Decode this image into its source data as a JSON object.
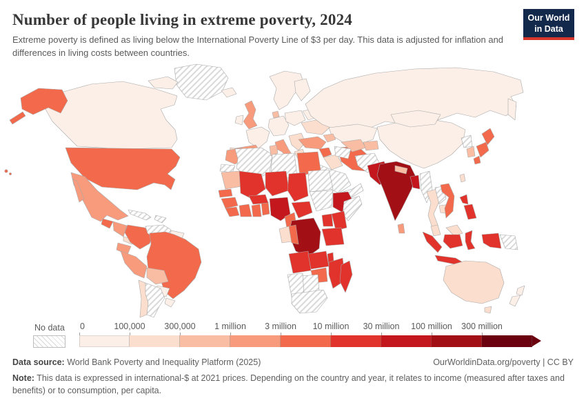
{
  "header": {
    "title": "Number of people living in extreme poverty, 2024",
    "subtitle": "Extreme poverty is defined as living below the International Poverty Line of $3 per day. This data is adjusted for inflation and differences in living costs between countries.",
    "logo": {
      "line1": "Our World",
      "line2": "in Data"
    }
  },
  "legend": {
    "no_data_label": "No data",
    "buckets": [
      {
        "label": "0",
        "color": "#fcefe7"
      },
      {
        "label": "100,000",
        "color": "#fbdecd"
      },
      {
        "label": "300,000",
        "color": "#f9bda3"
      },
      {
        "label": "1 million",
        "color": "#f89b7c"
      },
      {
        "label": "3 million",
        "color": "#f26a4b"
      },
      {
        "label": "10 million",
        "color": "#e1332b"
      },
      {
        "label": "30 million",
        "color": "#c3161d"
      },
      {
        "label": "100 million",
        "color": "#a21016"
      },
      {
        "label": "300 million",
        "color": "#6b000e"
      }
    ]
  },
  "chart_data": {
    "type": "choropleth",
    "title": "Number of people living in extreme poverty, 2024",
    "unit": "people",
    "bins": [
      "0-100,000",
      "100,000-300,000",
      "300,000-1 million",
      "1-3 million",
      "3-10 million",
      "10-30 million",
      "30-100 million",
      "100-300 million",
      "300 million+"
    ],
    "no_data_style": "diagonal-hatch",
    "regions": {
      "greenland": "nd",
      "canada": 1,
      "canada-islands": 1,
      "alaska": 5,
      "aleutians": 5,
      "usa": 5,
      "hawaii": 5,
      "mexico": 4,
      "guatemala": 5,
      "honduras-nicaragua": 4,
      "costa-rica-panama": 2,
      "cuba": "nd",
      "hispaniola": "nd",
      "colombia": 5,
      "venezuela": "nd",
      "guyana-suriname": 1,
      "ecuador": 4,
      "peru": 4,
      "brazil": 5,
      "bolivia": 3,
      "paraguay": 1,
      "uruguay": 1,
      "chile": 2,
      "argentina": "nd",
      "iceland": 1,
      "scandinavia": 1,
      "finland": 1,
      "denmark": 3,
      "uk": 4,
      "ireland": 1,
      "france": 1,
      "spain": 4,
      "portugal": 2,
      "central-europe": 1,
      "italy": 4,
      "poland-baltics": 1,
      "balkans": 2,
      "greece": 2,
      "romania-ukraine": 2,
      "belarus": 1,
      "russia": 1,
      "kamchatka": 1,
      "kazakhstan": 1,
      "turkey": 4,
      "caucasus": 3,
      "syria": 5,
      "iraq": 2,
      "iran": 5,
      "saudi-arabia": "nd",
      "yemen-oman": "nd",
      "uzbekistan": 3,
      "turkmenistan": "nd",
      "kyrgyzstan-tajikistan": 3,
      "afghanistan": "nd",
      "pakistan": 7,
      "india": 8,
      "nepal": 3,
      "bangladesh": 7,
      "sri-lanka": 4,
      "myanmar": "nd",
      "china": 1,
      "mongolia": 1,
      "thailand": 2,
      "laos": "nd",
      "cambodia": 2,
      "vietnam": 5,
      "malaysia": 2,
      "borneo-malaysia": 2,
      "sumatra": 6,
      "java": 6,
      "borneo-indonesia": 6,
      "sulawesi": 6,
      "west-papua": 6,
      "papua-new-guinea": "nd",
      "philippines-north": 6,
      "philippines-south": 6,
      "taiwan": 2,
      "japan-north": 5,
      "japan-central": 5,
      "japan-south": 5,
      "south-korea": 3,
      "north-korea": "nd",
      "morocco": 4,
      "western-sahara": "nd",
      "algeria": "nd",
      "tunisia": 3,
      "libya": "nd",
      "egypt": 5,
      "mauritania": 3,
      "mali": 6,
      "niger": 6,
      "chad": 6,
      "sudan": "nd",
      "south-sudan": "nd",
      "senegal": 5,
      "guinea": 5,
      "sierra-leone-liberia": 5,
      "ivory-coast": 5,
      "ghana": 5,
      "benin-togo": 5,
      "burkina-faso": 6,
      "nigeria": 7,
      "cameroon": 5,
      "central-african-republic": 6,
      "ethiopia": 7,
      "somalia": "nd",
      "kenya": 6,
      "uganda": 6,
      "tanzania": 6,
      "drc": 8,
      "gabon": 2,
      "congo": 5,
      "angola": 6,
      "zambia": 6,
      "malawi": 6,
      "mozambique": 6,
      "zimbabwe": 5,
      "botswana": "nd",
      "namibia": "nd",
      "south-africa": "nd",
      "madagascar": 6,
      "australia": 2,
      "tasmania": 2,
      "new-zealand-north": 1,
      "new-zealand-south": 1
    }
  },
  "footer": {
    "source_label": "Data source:",
    "source_text": " World Bank Poverty and Inequality Platform (2025)",
    "right_text": "OurWorldinData.org/poverty | CC BY",
    "note_label": "Note:",
    "note_text": " This data is expressed in international-$ at 2021 prices. Depending on the country and year, it relates to income (measured after taxes and benefits) or to consumption, per capita."
  }
}
